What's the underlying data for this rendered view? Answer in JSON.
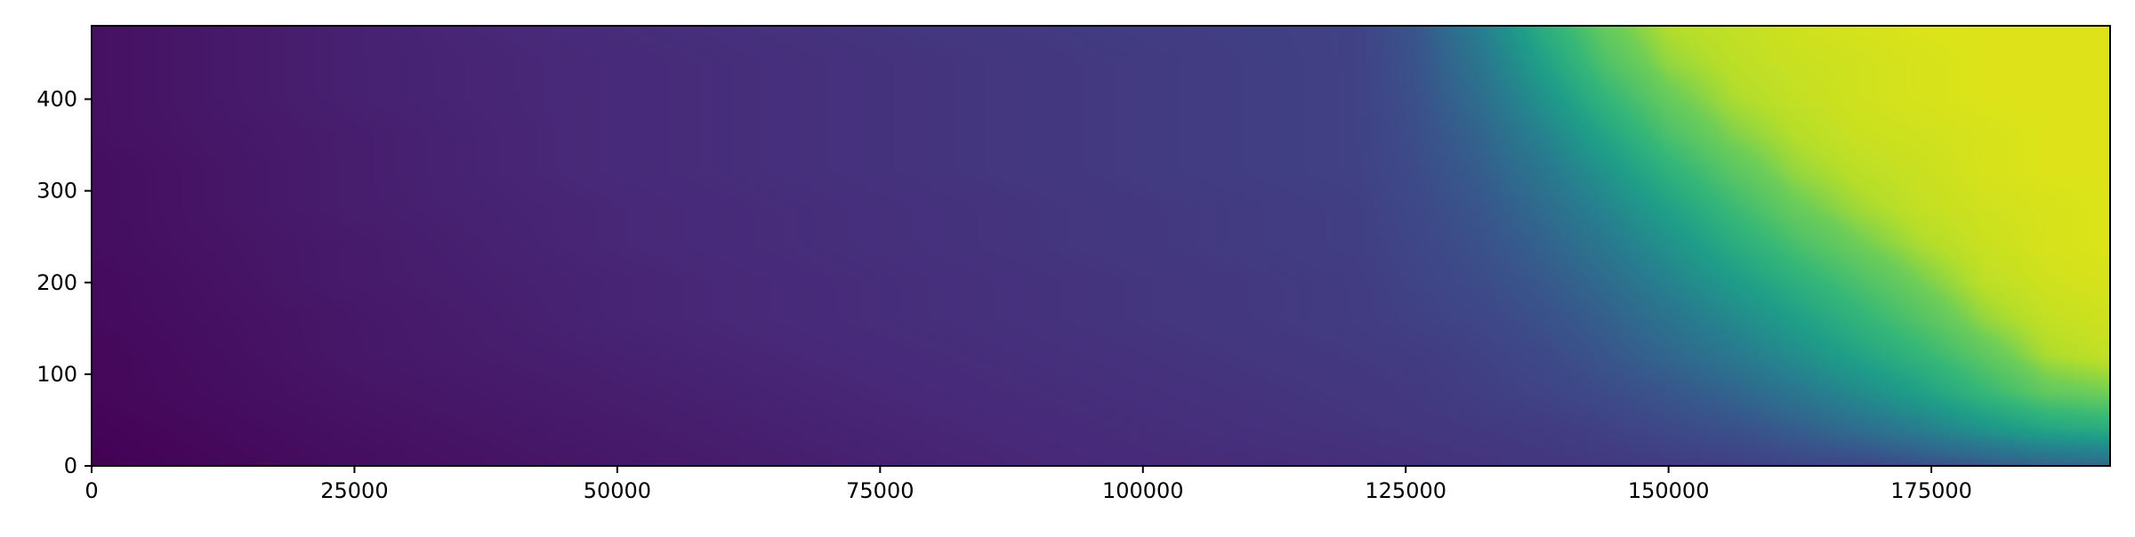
{
  "chart_data": {
    "type": "heatmap",
    "title": "",
    "xlabel": "",
    "ylabel": "",
    "xlim": [
      0,
      192000
    ],
    "ylim": [
      0,
      480
    ],
    "grid": false,
    "colormap": "viridis",
    "x_ticks": [
      {
        "value": 0,
        "label": "0"
      },
      {
        "value": 25000,
        "label": "25000"
      },
      {
        "value": 50000,
        "label": "50000"
      },
      {
        "value": 75000,
        "label": "75000"
      },
      {
        "value": 100000,
        "label": "100000"
      },
      {
        "value": 125000,
        "label": "125000"
      },
      {
        "value": 150000,
        "label": "150000"
      },
      {
        "value": 175000,
        "label": "175000"
      }
    ],
    "y_ticks": [
      {
        "value": 0,
        "label": "0"
      },
      {
        "value": 100,
        "label": "100"
      },
      {
        "value": 200,
        "label": "200"
      },
      {
        "value": 300,
        "label": "300"
      },
      {
        "value": 400,
        "label": "400"
      }
    ],
    "colormap_stops": [
      {
        "t": 0.0,
        "color": "#440154"
      },
      {
        "t": 0.125,
        "color": "#482878"
      },
      {
        "t": 0.25,
        "color": "#3e4989"
      },
      {
        "t": 0.375,
        "color": "#31688e"
      },
      {
        "t": 0.5,
        "color": "#26828e"
      },
      {
        "t": 0.625,
        "color": "#1f9e89"
      },
      {
        "t": 0.75,
        "color": "#35b779"
      },
      {
        "t": 0.875,
        "color": "#6ece58"
      },
      {
        "t": 0.94,
        "color": "#b5de2b"
      },
      {
        "t": 1.0,
        "color": "#dde318"
      }
    ],
    "grid_x": [
      0,
      24000,
      48000,
      72000,
      96000,
      120000,
      126000,
      132000,
      138000,
      144000,
      150000,
      156000,
      162000,
      168000,
      174000,
      180000,
      186000,
      192000
    ],
    "grid_y": [
      0,
      40,
      80,
      120,
      160,
      200,
      240,
      280,
      320,
      360,
      400,
      440,
      480
    ],
    "z": [
      [
        0.0,
        0.04,
        0.07,
        0.1,
        0.13,
        0.15,
        0.16,
        0.17,
        0.18,
        0.19,
        0.2,
        0.21,
        0.23,
        0.24,
        0.27,
        0.31,
        0.36,
        0.38
      ],
      [
        0.01,
        0.05,
        0.08,
        0.11,
        0.14,
        0.17,
        0.18,
        0.19,
        0.2,
        0.22,
        0.25,
        0.28,
        0.33,
        0.4,
        0.48,
        0.58,
        0.66,
        0.7
      ],
      [
        0.02,
        0.06,
        0.09,
        0.12,
        0.15,
        0.18,
        0.19,
        0.21,
        0.23,
        0.26,
        0.3,
        0.36,
        0.44,
        0.54,
        0.64,
        0.75,
        0.85,
        0.88
      ],
      [
        0.02,
        0.07,
        0.1,
        0.13,
        0.16,
        0.19,
        0.2,
        0.22,
        0.25,
        0.3,
        0.37,
        0.45,
        0.55,
        0.65,
        0.74,
        0.84,
        0.93,
        0.96
      ],
      [
        0.03,
        0.07,
        0.11,
        0.14,
        0.17,
        0.2,
        0.22,
        0.24,
        0.28,
        0.34,
        0.43,
        0.53,
        0.63,
        0.73,
        0.82,
        0.91,
        0.96,
        0.98
      ],
      [
        0.03,
        0.08,
        0.11,
        0.14,
        0.17,
        0.2,
        0.23,
        0.26,
        0.31,
        0.39,
        0.5,
        0.61,
        0.71,
        0.8,
        0.88,
        0.95,
        0.98,
        0.99
      ],
      [
        0.04,
        0.08,
        0.12,
        0.15,
        0.18,
        0.21,
        0.24,
        0.28,
        0.35,
        0.45,
        0.57,
        0.69,
        0.79,
        0.87,
        0.93,
        0.97,
        0.99,
        1.0
      ],
      [
        0.04,
        0.09,
        0.12,
        0.15,
        0.18,
        0.21,
        0.25,
        0.3,
        0.39,
        0.51,
        0.64,
        0.76,
        0.86,
        0.92,
        0.96,
        0.98,
        0.99,
        1.0
      ],
      [
        0.04,
        0.09,
        0.13,
        0.16,
        0.19,
        0.22,
        0.26,
        0.33,
        0.44,
        0.58,
        0.72,
        0.83,
        0.91,
        0.95,
        0.97,
        0.99,
        1.0,
        1.0
      ],
      [
        0.05,
        0.09,
        0.13,
        0.16,
        0.19,
        0.22,
        0.27,
        0.36,
        0.5,
        0.66,
        0.8,
        0.89,
        0.94,
        0.97,
        0.98,
        0.99,
        1.0,
        1.0
      ],
      [
        0.05,
        0.1,
        0.13,
        0.16,
        0.19,
        0.22,
        0.28,
        0.4,
        0.57,
        0.74,
        0.86,
        0.93,
        0.96,
        0.98,
        0.99,
        1.0,
        1.0,
        1.0
      ],
      [
        0.05,
        0.1,
        0.13,
        0.16,
        0.19,
        0.22,
        0.29,
        0.44,
        0.64,
        0.81,
        0.91,
        0.95,
        0.97,
        0.98,
        0.99,
        1.0,
        1.0,
        1.0
      ],
      [
        0.05,
        0.1,
        0.14,
        0.17,
        0.2,
        0.22,
        0.3,
        0.48,
        0.7,
        0.86,
        0.94,
        0.96,
        0.98,
        0.99,
        1.0,
        1.0,
        1.0,
        1.0
      ]
    ]
  }
}
